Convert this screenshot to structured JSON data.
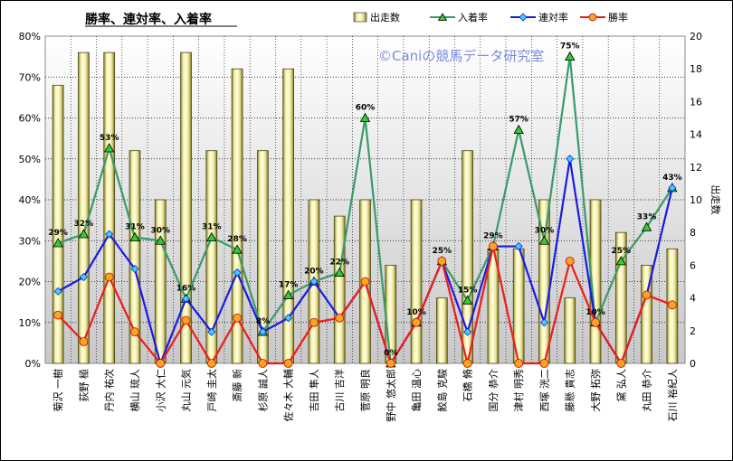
{
  "chart_data": {
    "type": "bar+line",
    "title": "勝率、連対率、入着率",
    "watermark": "©Caniの競馬データ研究室",
    "y2label": "出走数",
    "ylim": [
      0,
      80
    ],
    "y2lim": [
      0,
      20
    ],
    "yticks": [
      "0%",
      "10%",
      "20%",
      "30%",
      "40%",
      "50%",
      "60%",
      "70%",
      "80%"
    ],
    "y2ticks": [
      "0",
      "2",
      "4",
      "6",
      "8",
      "10",
      "12",
      "14",
      "16",
      "18",
      "20"
    ],
    "categories": [
      "菊沢 一樹",
      "荻野 極",
      "丹内 祐次",
      "横山 琉人",
      "小沢 大仁",
      "丸山 元気",
      "戸崎 圭太",
      "斎藤 新",
      "杉原 誠人",
      "佐々木 大輔",
      "吉田 隼人",
      "古川 吉洋",
      "菅原 明良",
      "野中 悠太郎",
      "亀田 温心",
      "鮫島 克駿",
      "石橋 脩",
      "国分 恭介",
      "津村 明秀",
      "西塚 洸二",
      "藤懸 貴志",
      "大野 拓弥",
      "黛 弘人",
      "丸田 恭介",
      "石川 裕紀人"
    ],
    "legend": [
      "出走数",
      "入着率",
      "連対率",
      "勝率"
    ],
    "series": [
      {
        "name": "出走数",
        "type": "bar",
        "axis": "right",
        "color": "#f0eca0",
        "values": [
          17,
          19,
          19,
          13,
          10,
          19,
          13,
          18,
          13,
          18,
          10,
          9,
          10,
          6,
          10,
          4,
          13,
          7,
          7,
          10,
          4,
          10,
          8,
          6,
          7
        ]
      },
      {
        "name": "入着率",
        "type": "line",
        "axis": "left",
        "color": "#3a9a6a",
        "marker": "#33cc33",
        "values": [
          29.4,
          31.6,
          52.6,
          30.8,
          30.0,
          15.8,
          30.8,
          27.8,
          7.7,
          16.7,
          20.0,
          22.2,
          60.0,
          0.0,
          10.0,
          25.0,
          15.4,
          28.6,
          57.1,
          30.0,
          75.0,
          10.0,
          25.0,
          33.3,
          42.9
        ],
        "labels": [
          "29%",
          "32%",
          "53%",
          "31%",
          "30%",
          "16%",
          "31%",
          "28%",
          "8%",
          "17%",
          "20%",
          "22%",
          "60%",
          "0%",
          "10%",
          "25%",
          "15%",
          "29%",
          "57%",
          "30%",
          "75%",
          "10%",
          "25%",
          "33%",
          "43%"
        ]
      },
      {
        "name": "連対率",
        "type": "line",
        "axis": "left",
        "color": "#1a1ae6",
        "marker": "#33d6ff",
        "values": [
          17.6,
          21.1,
          31.6,
          23.1,
          0.0,
          15.8,
          7.7,
          22.2,
          7.7,
          11.1,
          20.0,
          11.1,
          20.0,
          0.0,
          10.0,
          25.0,
          7.7,
          28.6,
          28.6,
          10.0,
          50.0,
          10.0,
          0.0,
          16.7,
          42.9
        ]
      },
      {
        "name": "勝率",
        "type": "line",
        "axis": "left",
        "color": "#ee1c1c",
        "marker": "#f5a623",
        "values": [
          11.8,
          5.3,
          21.1,
          7.7,
          0.0,
          10.5,
          0.0,
          11.1,
          0.0,
          0.0,
          10.0,
          11.1,
          20.0,
          0.0,
          10.0,
          25.0,
          0.0,
          28.6,
          0.0,
          0.0,
          25.0,
          10.0,
          0.0,
          16.7,
          14.3
        ]
      }
    ]
  }
}
